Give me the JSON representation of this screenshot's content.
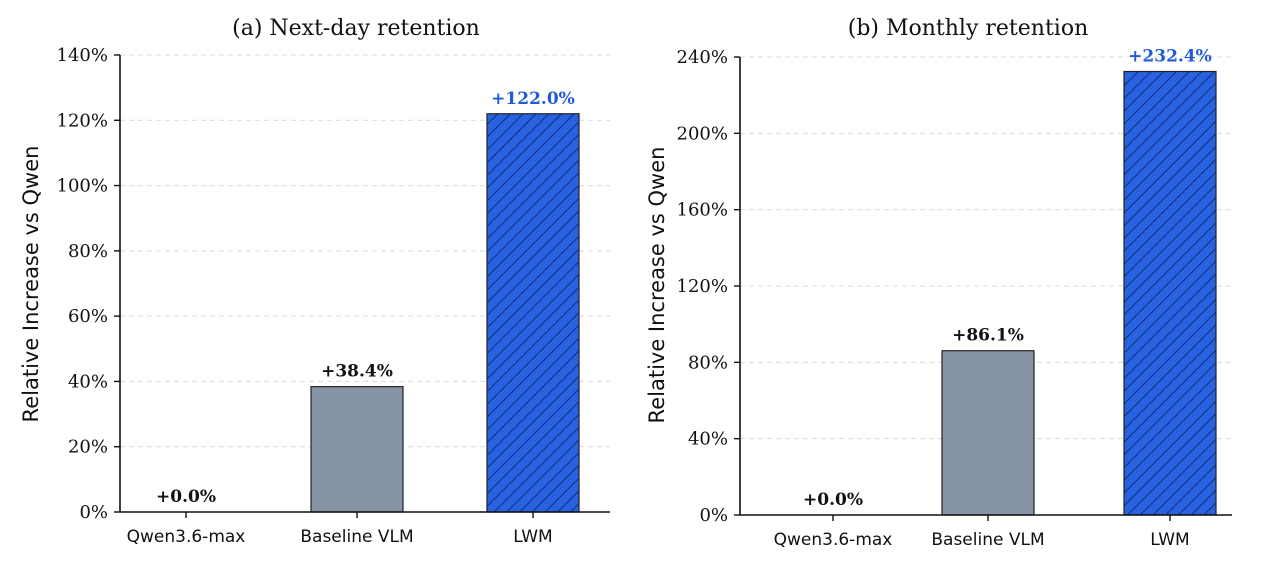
{
  "chart_data": [
    {
      "type": "bar",
      "title": "(a) Next-day retention",
      "ylabel": "Relative Increase vs Qwen",
      "categories": [
        "Qwen3.6-max",
        "Baseline VLM",
        "LWM"
      ],
      "values": [
        0.0,
        38.4,
        122.0
      ],
      "data_labels": [
        "+0.0%",
        "+38.4%",
        "+122.0%"
      ],
      "ylim": [
        0,
        140
      ],
      "yticks": [
        0,
        20,
        40,
        60,
        80,
        100,
        120,
        140
      ],
      "ytick_labels": [
        "0%",
        "20%",
        "40%",
        "60%",
        "80%",
        "100%",
        "120%",
        "140%"
      ],
      "grid": true
    },
    {
      "type": "bar",
      "title": "(b) Monthly retention",
      "ylabel": "Relative Increase vs Qwen",
      "categories": [
        "Qwen3.6-max",
        "Baseline VLM",
        "LWM"
      ],
      "values": [
        0.0,
        86.1,
        232.4
      ],
      "data_labels": [
        "+0.0%",
        "+86.1%",
        "+232.4%"
      ],
      "ylim": [
        0,
        240
      ],
      "yticks": [
        0,
        40,
        80,
        120,
        160,
        200,
        240
      ],
      "ytick_labels": [
        "0%",
        "40%",
        "80%",
        "120%",
        "160%",
        "200%",
        "240%"
      ],
      "grid": true
    }
  ],
  "colors": {
    "baseline_bar": "#8794a6",
    "lwm_bar": "#2962e0",
    "lwm_label": "#1f5bd8",
    "default_label": "#111111"
  }
}
